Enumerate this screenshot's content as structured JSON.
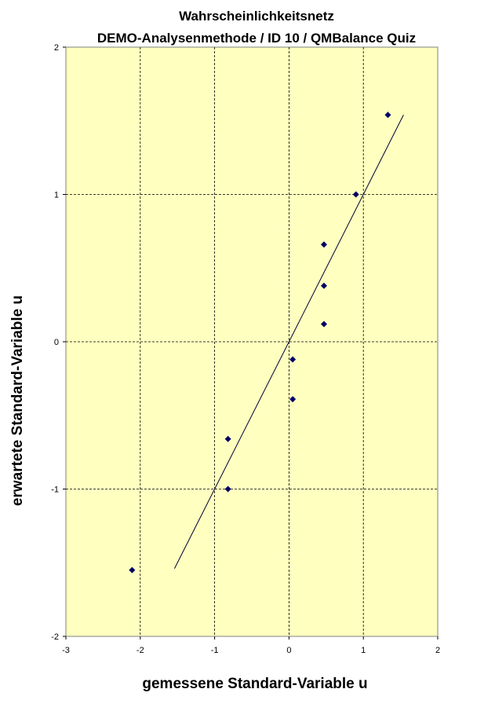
{
  "chart_data": {
    "type": "scatter",
    "title": "Wahrscheinlichkeitsnetz",
    "subtitle": "DEMO-Analysenmethode  / ID 10 / QMBalance Quiz",
    "xlabel": "gemessene Standard-Variable u",
    "ylabel": "erwartete Standard-Variable u",
    "xlim": [
      -3,
      2
    ],
    "ylim": [
      -2,
      2
    ],
    "x_ticks": [
      "-3",
      "-2",
      "-1",
      "0",
      "1",
      "2"
    ],
    "y_ticks": [
      "2",
      "1",
      "0",
      "-1",
      "-2"
    ],
    "grid": true,
    "legend": "none",
    "colors": {
      "plot_background": "#ffffc0",
      "marker": "#000066",
      "line": "#000033",
      "grid": "#000000"
    },
    "points": [
      {
        "x": -2.11,
        "y": -1.55
      },
      {
        "x": -0.82,
        "y": -1.0
      },
      {
        "x": -0.82,
        "y": -0.66
      },
      {
        "x": 0.05,
        "y": -0.39
      },
      {
        "x": 0.05,
        "y": -0.12
      },
      {
        "x": 0.47,
        "y": 0.12
      },
      {
        "x": 0.47,
        "y": 0.38
      },
      {
        "x": 0.47,
        "y": 0.66
      },
      {
        "x": 0.9,
        "y": 1.0
      },
      {
        "x": 1.33,
        "y": 1.54
      }
    ],
    "line": {
      "x": [
        -1.54,
        1.54
      ],
      "y": [
        -1.54,
        1.54
      ]
    }
  }
}
